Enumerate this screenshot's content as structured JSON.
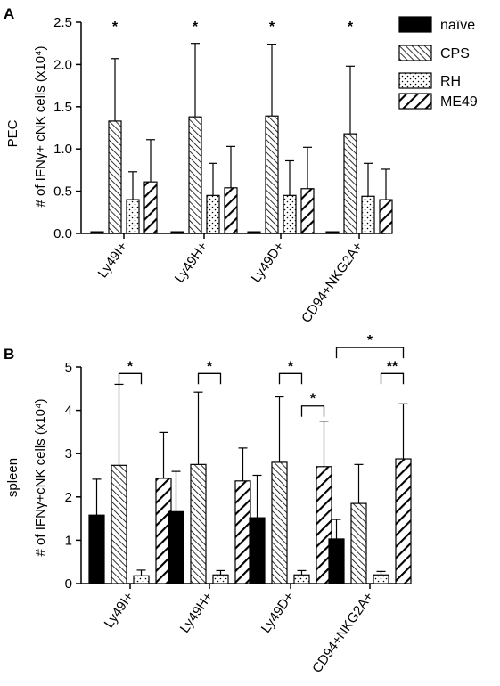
{
  "legend": {
    "items": [
      {
        "label": "naïve",
        "pattern": "solid"
      },
      {
        "label": "CPS",
        "pattern": "hatch-dense"
      },
      {
        "label": "RH",
        "pattern": "dots"
      },
      {
        "label": "ME49",
        "pattern": "hatch-wide"
      }
    ]
  },
  "chart_data": [
    {
      "type": "bar",
      "panel_letter": "A",
      "row_label": "PEC",
      "ylabel": "# of IFNγ+ cNK cells (x10⁴)",
      "ylim": [
        0,
        2.5
      ],
      "yticks": [
        "0.0",
        "0.5",
        "1.0",
        "1.5",
        "2.0",
        "2.5"
      ],
      "categories": [
        "Ly49I+",
        "Ly49H+",
        "Ly49D+",
        "CD94+NKG2A+"
      ],
      "series": [
        {
          "name": "naïve",
          "values": [
            0.02,
            0.02,
            0.02,
            0.02
          ],
          "err": [
            0.0,
            0.0,
            0.0,
            0.0
          ]
        },
        {
          "name": "CPS",
          "values": [
            1.33,
            1.38,
            1.39,
            1.18
          ],
          "err": [
            0.74,
            0.87,
            0.85,
            0.8
          ]
        },
        {
          "name": "RH",
          "values": [
            0.4,
            0.45,
            0.45,
            0.44
          ],
          "err": [
            0.33,
            0.38,
            0.41,
            0.39
          ]
        },
        {
          "name": "ME49",
          "values": [
            0.61,
            0.54,
            0.53,
            0.4
          ],
          "err": [
            0.5,
            0.49,
            0.49,
            0.36
          ]
        }
      ],
      "annotations": [
        {
          "type": "star",
          "text": "*",
          "group": 0
        },
        {
          "type": "star",
          "text": "*",
          "group": 1
        },
        {
          "type": "star",
          "text": "*",
          "group": 2
        },
        {
          "type": "star",
          "text": "*",
          "group": 3
        }
      ]
    },
    {
      "type": "bar",
      "panel_letter": "B",
      "row_label": "spleen",
      "ylabel": "# of IFNγ+cNK cells (x10⁴)",
      "ylim": [
        0,
        5
      ],
      "yticks": [
        "0",
        "1",
        "2",
        "3",
        "4",
        "5"
      ],
      "categories": [
        "Ly49I+",
        "Ly49H+",
        "Ly49D+",
        "CD94+NKG2A+"
      ],
      "series": [
        {
          "name": "naïve",
          "values": [
            1.58,
            1.66,
            1.52,
            1.03
          ],
          "err": [
            0.83,
            0.93,
            0.98,
            0.45
          ]
        },
        {
          "name": "CPS",
          "values": [
            2.73,
            2.75,
            2.8,
            1.85
          ],
          "err": [
            1.87,
            1.67,
            1.51,
            0.9
          ]
        },
        {
          "name": "RH",
          "values": [
            0.18,
            0.2,
            0.2,
            0.2
          ],
          "err": [
            0.13,
            0.1,
            0.1,
            0.08
          ]
        },
        {
          "name": "ME49",
          "values": [
            2.43,
            2.37,
            2.7,
            2.88
          ],
          "err": [
            1.06,
            0.76,
            1.05,
            1.27
          ]
        }
      ],
      "annotations": [
        {
          "type": "bracket",
          "text": "*",
          "group": 0,
          "from": 1,
          "to": 2,
          "y": 4.85
        },
        {
          "type": "bracket",
          "text": "*",
          "group": 1,
          "from": 1,
          "to": 2,
          "y": 4.85
        },
        {
          "type": "bracket",
          "text": "*",
          "group": 2,
          "from": 1,
          "to": 2,
          "y": 4.85
        },
        {
          "type": "bracket",
          "text": "*",
          "group": 2,
          "from": 2,
          "to": 3,
          "y": 4.1
        },
        {
          "type": "bracket",
          "text": "**",
          "group": 3,
          "from": 2,
          "to": 3,
          "y": 4.85
        },
        {
          "type": "wide-bracket",
          "text": "*",
          "group": 3,
          "from": 0,
          "to": 3,
          "y": 5.45
        }
      ]
    }
  ]
}
